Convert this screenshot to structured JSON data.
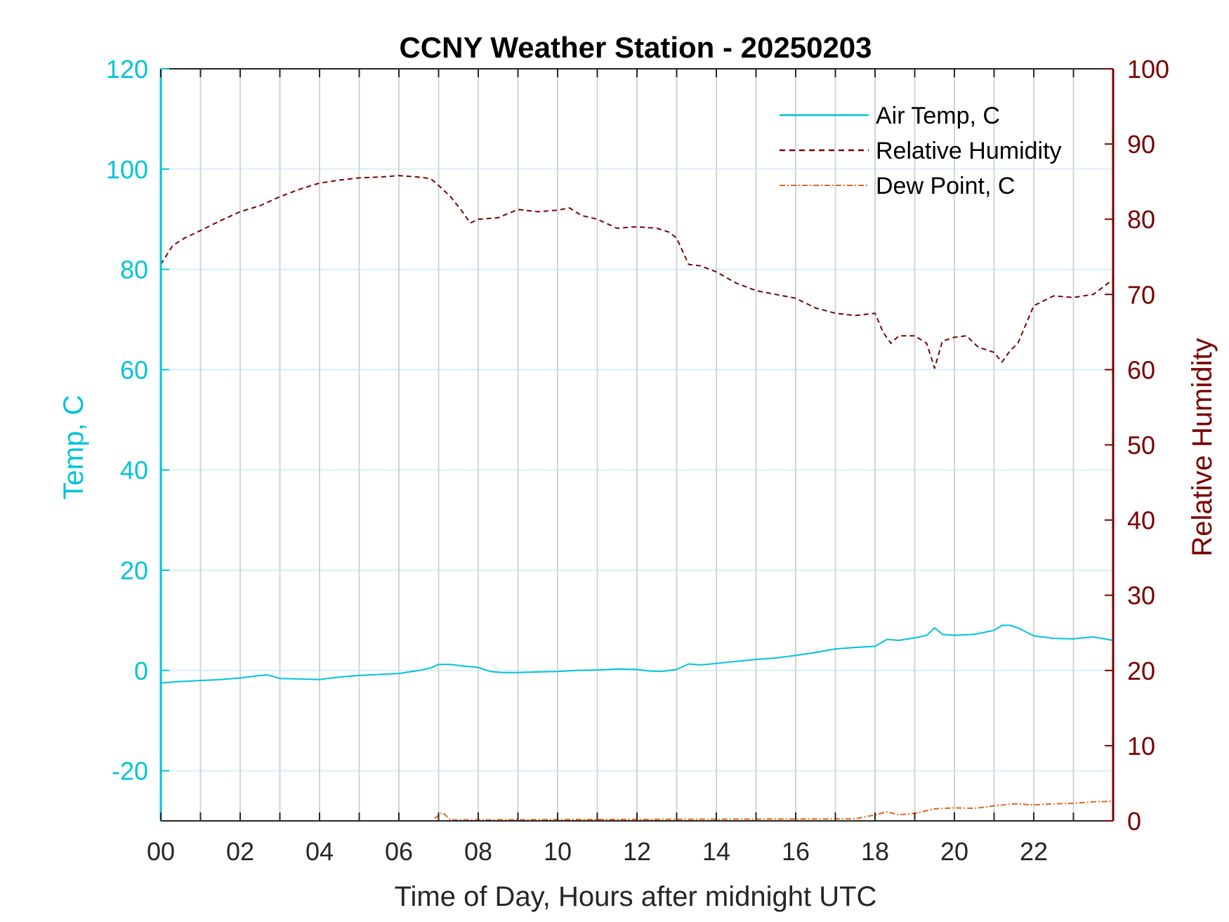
{
  "chart_data": {
    "type": "line",
    "title": "CCNY Weather Station - 20250203",
    "xlabel": "Time of Day, Hours after midnight UTC",
    "ylabel_left": "Temp, C",
    "ylabel_right": "Relative Humidity",
    "xlim": [
      0,
      24
    ],
    "ylim_left": [
      -30,
      120
    ],
    "ylim_right": [
      0,
      100
    ],
    "x_ticks": [
      "00",
      "02",
      "04",
      "06",
      "08",
      "10",
      "12",
      "14",
      "16",
      "18",
      "20",
      "22"
    ],
    "y_ticks_left": [
      "-20",
      "0",
      "20",
      "40",
      "60",
      "80",
      "100",
      "120"
    ],
    "y_ticks_right": [
      "0",
      "10",
      "20",
      "30",
      "40",
      "50",
      "60",
      "70",
      "80",
      "90",
      "100"
    ],
    "grid": true,
    "legend_position": "top-right",
    "colors": {
      "temp": "#00c3d9",
      "rh": "#7a0000",
      "dew": "#e0651f",
      "grid_vertical": "#d0d4d8",
      "grid_horizontal": "#d5f1f6",
      "axis": "#262626"
    },
    "series": [
      {
        "name": "Air Temp, C",
        "axis": "left",
        "style": "solid",
        "x": [
          0,
          0.5,
          1,
          1.5,
          2,
          2.5,
          2.7,
          3,
          3.5,
          4,
          4.5,
          5,
          5.5,
          6,
          6.5,
          6.8,
          7,
          7.3,
          7.6,
          8,
          8.3,
          8.6,
          9,
          9.5,
          10,
          10.5,
          11,
          11.5,
          12,
          12.3,
          12.6,
          13,
          13.3,
          13.6,
          14,
          14.5,
          15,
          15.5,
          16,
          16.5,
          17,
          17.5,
          18,
          18.3,
          18.6,
          19,
          19.3,
          19.5,
          19.7,
          20,
          20.5,
          21,
          21.2,
          21.4,
          21.6,
          22,
          22.5,
          23,
          23.5,
          24
        ],
        "y": [
          -2.5,
          -2.2,
          -2,
          -1.8,
          -1.5,
          -1,
          -0.9,
          -1.6,
          -1.7,
          -1.8,
          -1.3,
          -1,
          -0.8,
          -0.6,
          0,
          0.5,
          1.2,
          1.2,
          0.9,
          0.6,
          -0.2,
          -0.4,
          -0.4,
          -0.3,
          -0.2,
          0,
          0.1,
          0.3,
          0.2,
          -0.1,
          -0.2,
          0.2,
          1.3,
          1.1,
          1.4,
          1.8,
          2.2,
          2.5,
          3,
          3.6,
          4.3,
          4.6,
          4.8,
          6.2,
          6,
          6.5,
          7,
          8.5,
          7.2,
          7,
          7.2,
          8,
          9,
          9,
          8.5,
          6.9,
          6.4,
          6.3,
          6.7,
          6
        ]
      },
      {
        "name": "Relative Humidity",
        "axis": "right",
        "style": "dashed",
        "x": [
          0,
          0.3,
          0.6,
          1,
          1.5,
          2,
          2.5,
          3,
          3.5,
          4,
          4.5,
          5,
          5.5,
          6,
          6.5,
          6.8,
          7,
          7.3,
          7.6,
          7.8,
          8,
          8.5,
          9,
          9.5,
          10,
          10.3,
          10.6,
          11,
          11.5,
          12,
          12.5,
          12.8,
          13,
          13.3,
          13.6,
          14,
          14.5,
          15,
          15.5,
          16,
          16.5,
          17,
          17.5,
          18,
          18.2,
          18.4,
          18.6,
          19,
          19.3,
          19.5,
          19.7,
          20,
          20.3,
          20.6,
          21,
          21.2,
          21.4,
          21.6,
          21.8,
          22,
          22.5,
          23,
          23.5,
          24
        ],
        "y": [
          74,
          76.5,
          77.5,
          78.5,
          79.8,
          81,
          81.8,
          83,
          84,
          84.8,
          85.2,
          85.5,
          85.6,
          85.8,
          85.6,
          85.4,
          84.5,
          83,
          81,
          79.5,
          80,
          80.2,
          81.3,
          81,
          81.2,
          81.5,
          80.5,
          80,
          78.8,
          79,
          78.8,
          78.3,
          77.5,
          74,
          73.8,
          73,
          71.5,
          70.5,
          70,
          69.5,
          68.2,
          67.5,
          67.2,
          67.5,
          65,
          63.5,
          64.5,
          64.5,
          63.5,
          60.2,
          63.8,
          64.3,
          64.5,
          63,
          62.3,
          61,
          62.5,
          63.5,
          66,
          68.5,
          69.8,
          69.6,
          70,
          72
        ]
      },
      {
        "name": "Dew Point, C",
        "axis": "left",
        "style": "dash-dot",
        "x": [
          6.9,
          7.1,
          7.3,
          17.5,
          18,
          18.3,
          18.6,
          19,
          19.5,
          20,
          20.5,
          21,
          21.5,
          22,
          22.5,
          23,
          23.5,
          24
        ],
        "y": [
          -29.5,
          -28.3,
          -29.8,
          -29.6,
          -28.8,
          -28.2,
          -28.8,
          -28.5,
          -27.6,
          -27.4,
          -27.5,
          -27,
          -26.6,
          -26.8,
          -26.6,
          -26.5,
          -26.2,
          -26.1
        ]
      }
    ]
  }
}
